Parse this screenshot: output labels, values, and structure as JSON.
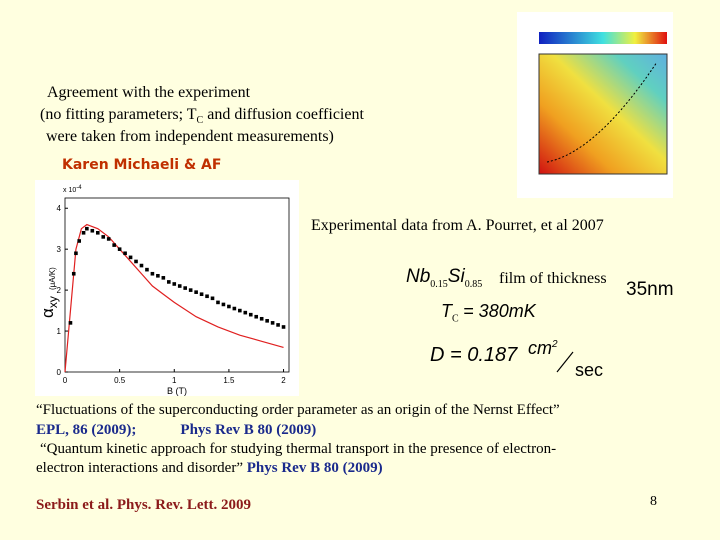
{
  "agreement": {
    "line1": "Agreement with the experiment",
    "line2_start": "(no fitting parameters;  T",
    "line2_sub": "C",
    "line2_end": "and diffusion coefficient",
    "line3": "were taken from independent measurements)"
  },
  "author": "Karen Michaeli & AF",
  "experiment": "Experimental data from A. Pourret, et al 2007",
  "material": {
    "nb": "Nb",
    "nb_sub": "0.15",
    "si": "Si",
    "si_sub": "0.85",
    "film": "film of thickness",
    "thickness": "35nm"
  },
  "tc": {
    "t": "T",
    "sub": "C",
    "eq": "= 380mK"
  },
  "diffusion": {
    "lhs": "D = 0.187",
    "num": "cm",
    "sup": "2",
    "den": "sec"
  },
  "references": {
    "ref1_title": "“Fluctuations of the superconducting order parameter  as an origin of the Nernst Effect”",
    "ref1_journal1": "EPL, 86  (2009);",
    "ref1_journal2": "Phys Rev B 80 (2009)",
    "ref2_title_line1": "“Quantum kinetic approach for studying thermal transport in the presence of electron-",
    "ref2_title_line2": "electron interactions and disorder”",
    "ref2_journal": "Phys Rev B 80 (2009)"
  },
  "footer": "Serbin et al. Phys. Rev. Lett. 2009",
  "page_number": "8",
  "plot": {
    "y_label": "α",
    "y_label_sub": "xy",
    "y_unit": "(μA/K)",
    "scale": "x 10",
    "scale_exp": "-4",
    "x_label": "B (T)",
    "xlim": [
      0,
      2.05
    ],
    "ylim": [
      0,
      4.25
    ],
    "xticks": [
      0,
      0.5,
      1,
      1.5,
      2
    ],
    "yticks": [
      0,
      1,
      2,
      3,
      4
    ],
    "points": {
      "x": [
        0.05,
        0.08,
        0.1,
        0.13,
        0.17,
        0.2,
        0.25,
        0.3,
        0.35,
        0.4,
        0.45,
        0.5,
        0.55,
        0.6,
        0.65,
        0.7,
        0.75,
        0.8,
        0.85,
        0.9,
        0.95,
        1.0,
        1.05,
        1.1,
        1.15,
        1.2,
        1.25,
        1.3,
        1.35,
        1.4,
        1.45,
        1.5,
        1.55,
        1.6,
        1.65,
        1.7,
        1.75,
        1.8,
        1.85,
        1.9,
        1.95,
        2.0
      ],
      "values": [
        1.2,
        2.4,
        2.9,
        3.2,
        3.4,
        3.5,
        3.45,
        3.4,
        3.3,
        3.25,
        3.1,
        3.0,
        2.9,
        2.8,
        2.7,
        2.6,
        2.5,
        2.4,
        2.35,
        2.3,
        2.2,
        2.15,
        2.1,
        2.05,
        2.0,
        1.95,
        1.9,
        1.85,
        1.8,
        1.7,
        1.65,
        1.6,
        1.55,
        1.5,
        1.45,
        1.4,
        1.35,
        1.3,
        1.25,
        1.2,
        1.15,
        1.1
      ],
      "color": "#000000"
    },
    "theory": {
      "x": [
        0,
        0.05,
        0.1,
        0.15,
        0.2,
        0.3,
        0.4,
        0.5,
        0.6,
        0.7,
        0.8,
        0.9,
        1.0,
        1.2,
        1.4,
        1.6,
        1.8,
        2.0
      ],
      "values": [
        0,
        1.5,
        3.0,
        3.5,
        3.6,
        3.5,
        3.3,
        3.0,
        2.7,
        2.4,
        2.1,
        1.9,
        1.7,
        1.35,
        1.1,
        0.9,
        0.75,
        0.6
      ],
      "color": "#e02020"
    }
  }
}
